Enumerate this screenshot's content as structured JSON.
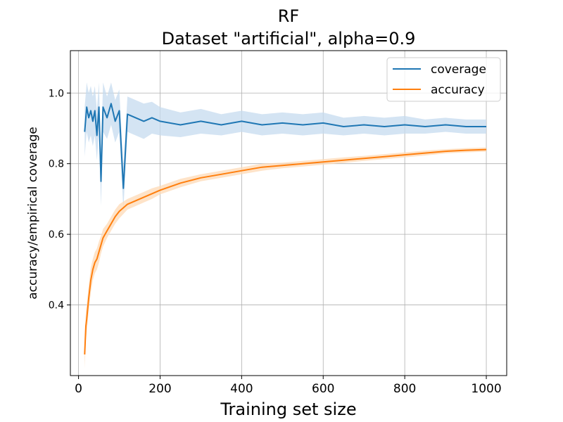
{
  "chart_data": {
    "type": "line",
    "title": "RF",
    "subtitle": "Dataset \"artificial\", alpha=0.9",
    "xlabel": "Training set size",
    "ylabel": "accuracy/empirical coverage",
    "xlim": [
      -20,
      1050
    ],
    "ylim": [
      0.2,
      1.12
    ],
    "x_ticks": [
      "0",
      "200",
      "400",
      "600",
      "800",
      "1000"
    ],
    "y_ticks": [
      "0.4",
      "0.6",
      "0.8",
      "1.0"
    ],
    "grid": true,
    "legend": "top-right",
    "series": [
      {
        "name": "coverage",
        "color": "#1f77b4",
        "band_color": "#c6dbef",
        "x": [
          15,
          20,
          25,
          30,
          35,
          40,
          45,
          50,
          55,
          60,
          70,
          80,
          90,
          100,
          110,
          120,
          140,
          160,
          180,
          200,
          250,
          300,
          350,
          400,
          450,
          500,
          550,
          600,
          650,
          700,
          750,
          800,
          850,
          900,
          950,
          1000
        ],
        "y": [
          0.89,
          0.96,
          0.93,
          0.95,
          0.92,
          0.95,
          0.88,
          0.96,
          0.75,
          0.96,
          0.93,
          0.97,
          0.92,
          0.95,
          0.73,
          0.94,
          0.93,
          0.92,
          0.93,
          0.92,
          0.91,
          0.92,
          0.91,
          0.92,
          0.91,
          0.915,
          0.91,
          0.915,
          0.905,
          0.91,
          0.905,
          0.91,
          0.905,
          0.91,
          0.905,
          0.905
        ],
        "band": [
          0.07,
          0.07,
          0.07,
          0.07,
          0.07,
          0.07,
          0.07,
          0.07,
          0.07,
          0.07,
          0.06,
          0.06,
          0.06,
          0.06,
          0.06,
          0.05,
          0.05,
          0.05,
          0.045,
          0.04,
          0.035,
          0.035,
          0.03,
          0.03,
          0.03,
          0.03,
          0.03,
          0.03,
          0.025,
          0.025,
          0.025,
          0.025,
          0.02,
          0.02,
          0.02,
          0.02
        ]
      },
      {
        "name": "accuracy",
        "color": "#ff7f0e",
        "band_color": "#fdd9b5",
        "x": [
          15,
          18,
          20,
          25,
          30,
          35,
          40,
          45,
          50,
          55,
          60,
          70,
          80,
          90,
          100,
          120,
          140,
          160,
          180,
          200,
          250,
          300,
          350,
          400,
          450,
          500,
          550,
          600,
          650,
          700,
          750,
          800,
          850,
          900,
          950,
          1000
        ],
        "y": [
          0.26,
          0.34,
          0.36,
          0.42,
          0.47,
          0.5,
          0.52,
          0.53,
          0.55,
          0.57,
          0.59,
          0.61,
          0.63,
          0.65,
          0.665,
          0.685,
          0.695,
          0.705,
          0.715,
          0.725,
          0.745,
          0.76,
          0.77,
          0.78,
          0.79,
          0.795,
          0.8,
          0.805,
          0.81,
          0.815,
          0.82,
          0.825,
          0.83,
          0.835,
          0.838,
          0.84
        ],
        "band": [
          0.04,
          0.04,
          0.04,
          0.035,
          0.035,
          0.03,
          0.03,
          0.03,
          0.03,
          0.025,
          0.025,
          0.02,
          0.02,
          0.02,
          0.02,
          0.015,
          0.015,
          0.015,
          0.015,
          0.012,
          0.012,
          0.01,
          0.01,
          0.01,
          0.01,
          0.008,
          0.008,
          0.008,
          0.008,
          0.007,
          0.007,
          0.007,
          0.007,
          0.006,
          0.006,
          0.006
        ]
      }
    ]
  }
}
